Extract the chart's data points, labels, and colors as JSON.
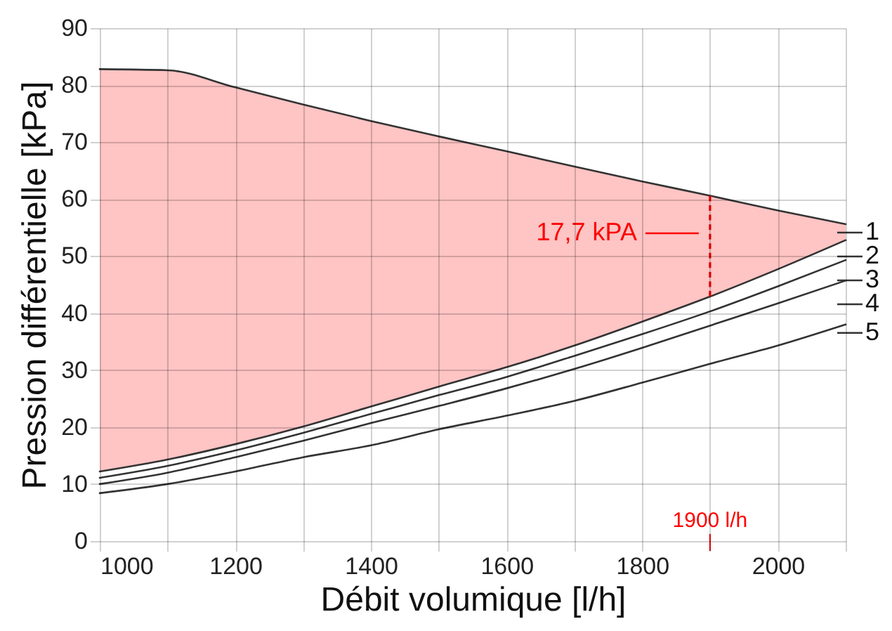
{
  "chart_data": {
    "type": "line",
    "xlabel": "Débit volumique [l/h]",
    "ylabel": "Pression différentielle [kPa]",
    "x": [
      1000,
      1100,
      1200,
      1300,
      1400,
      1500,
      1600,
      1700,
      1800,
      1900,
      2000,
      2100
    ],
    "series": [
      {
        "name": "1",
        "color": "#333333",
        "values": [
          82.8,
          82.6,
          79.6,
          76.6,
          73.7,
          71.0,
          68.4,
          65.7,
          63.1,
          60.6,
          58.0,
          55.6
        ],
        "lower": [
          12.2,
          14.3,
          17.0,
          20.1,
          23.6,
          27.1,
          30.5,
          34.3,
          38.5,
          42.9,
          47.7,
          52.8
        ],
        "upper": [
          82.8,
          82.6,
          79.6,
          76.6,
          73.7,
          71.0,
          68.4,
          65.7,
          63.1,
          60.6,
          58.0,
          55.6
        ]
      },
      {
        "name": "2",
        "color": "#333333",
        "values": [
          12.2,
          14.3,
          17.0,
          20.1,
          23.6,
          27.1,
          30.5,
          34.3,
          38.5,
          42.9,
          47.7,
          52.8
        ]
      },
      {
        "name": "3",
        "color": "#333333",
        "values": [
          11.1,
          13.2,
          15.9,
          19.0,
          22.3,
          25.6,
          28.8,
          32.5,
          36.3,
          40.3,
          44.7,
          49.3
        ]
      },
      {
        "name": "4",
        "color": "#333333",
        "values": [
          10.0,
          12.0,
          14.7,
          17.6,
          20.7,
          23.7,
          26.8,
          30.2,
          33.9,
          37.8,
          41.7,
          45.7
        ]
      },
      {
        "name": "5",
        "color": "#333333",
        "values": [
          8.4,
          10.0,
          12.2,
          14.7,
          16.8,
          19.6,
          22.0,
          24.6,
          27.8,
          31.1,
          34.3,
          38.0
        ]
      },
      {
        "color": "#ff0000",
        "x": [
          1900,
          1900
        ],
        "values": [
          42.9,
          60.6
        ],
        "line_style": "dashed"
      }
    ],
    "annotations": [
      {
        "text": "17,7 kPA",
        "x": 1900,
        "y": 54
      },
      "1900 l/h"
    ],
    "xlim": [
      1000,
      2100
    ],
    "xticks": [
      1000,
      {
        "value": 1100,
        "label": null
      },
      1200,
      {
        "value": 1300,
        "label": null
      },
      1400,
      {
        "value": 1500,
        "label": null
      },
      1600,
      {
        "value": 1700,
        "label": null
      },
      1800,
      {
        "value": 1900,
        "label": null
      },
      2000,
      {
        "value": 2100,
        "label": null
      }
    ],
    "ylim": [
      0,
      90
    ],
    "yticks": [
      0,
      10,
      20,
      30,
      40,
      50,
      60,
      70,
      80,
      90
    ],
    "grid": true,
    "legend": "right"
  }
}
